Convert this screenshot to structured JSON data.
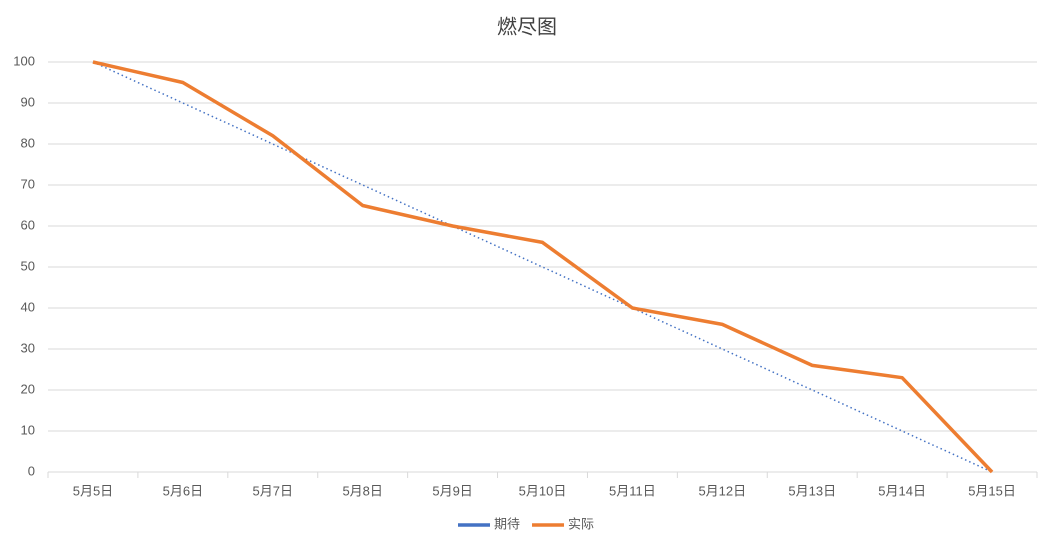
{
  "chart_data": {
    "type": "line",
    "title": "燃尽图",
    "categories": [
      "5月5日",
      "5月6日",
      "5月7日",
      "5月8日",
      "5月9日",
      "5月10日",
      "5月11日",
      "5月12日",
      "5月13日",
      "5月14日",
      "5月15日"
    ],
    "series": [
      {
        "name": "期待",
        "color": "#4472c4",
        "style": "dotted",
        "values": [
          100,
          90,
          80,
          70,
          60,
          50,
          40,
          30,
          20,
          10,
          0
        ]
      },
      {
        "name": "实际",
        "color": "#ed7d31",
        "style": "solid",
        "values": [
          100,
          95,
          82,
          65,
          60,
          56,
          40,
          36,
          26,
          23,
          0
        ]
      }
    ],
    "ylim": [
      0,
      100
    ],
    "yticks": [
      0,
      10,
      20,
      30,
      40,
      50,
      60,
      70,
      80,
      90,
      100
    ],
    "grid": true,
    "legend": "bottom"
  }
}
